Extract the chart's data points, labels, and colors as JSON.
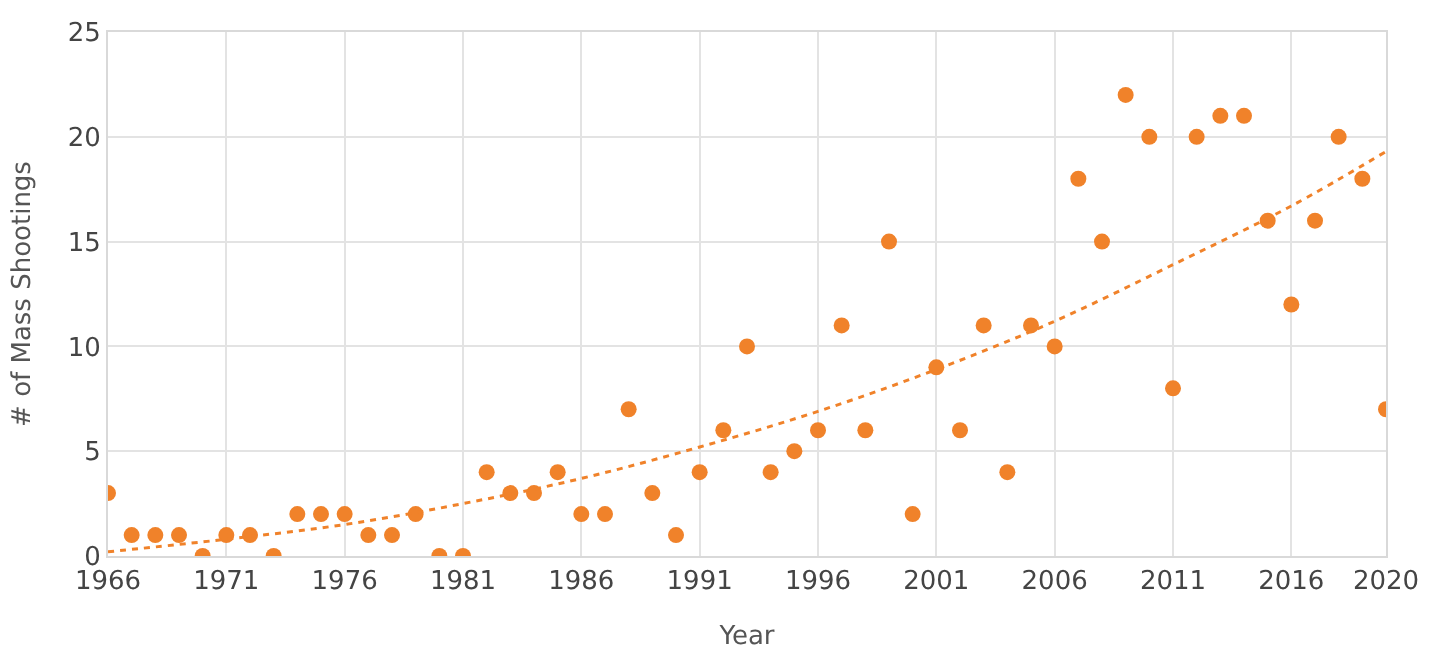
{
  "chart_data": {
    "type": "scatter",
    "xlabel": "Year",
    "ylabel": "# of Mass Shootings",
    "xlim": [
      1966,
      2020
    ],
    "xticks": [
      1966,
      1971,
      1976,
      1981,
      1986,
      1991,
      1996,
      2001,
      2006,
      2011,
      2016,
      2020
    ],
    "ylim": [
      0,
      25
    ],
    "yticks": [
      0,
      5,
      10,
      15,
      20,
      25
    ],
    "grid": true,
    "series": [
      {
        "marker": "circle",
        "color": "#f0822a",
        "x": [
          1966,
          1967,
          1968,
          1969,
          1970,
          1971,
          1972,
          1973,
          1974,
          1975,
          1976,
          1977,
          1978,
          1979,
          1980,
          1981,
          1982,
          1983,
          1984,
          1985,
          1986,
          1987,
          1988,
          1989,
          1990,
          1991,
          1992,
          1993,
          1994,
          1995,
          1996,
          1997,
          1998,
          1999,
          2000,
          2001,
          2002,
          2003,
          2004,
          2005,
          2006,
          2007,
          2008,
          2009,
          2010,
          2011,
          2012,
          2013,
          2014,
          2015,
          2016,
          2017,
          2018,
          2019,
          2020
        ],
        "values": [
          3,
          1,
          1,
          1,
          0,
          1,
          1,
          0,
          2,
          2,
          2,
          1,
          1,
          2,
          0,
          0,
          4,
          3,
          3,
          4,
          2,
          2,
          7,
          3,
          1,
          4,
          6,
          10,
          4,
          5,
          6,
          11,
          6,
          15,
          2,
          9,
          6,
          11,
          4,
          11,
          10,
          18,
          15,
          22,
          20,
          8,
          20,
          21,
          21,
          16,
          12,
          16,
          20,
          18,
          7
        ]
      },
      {
        "type": "line",
        "line_style": "dotted",
        "marker": "none",
        "color": "#f0822a",
        "x": [
          1966,
          1971,
          1976,
          1981,
          1986,
          1991,
          1996,
          2001,
          2006,
          2011,
          2016,
          2020
        ],
        "values": [
          0.2,
          0.8,
          1.5,
          2.5,
          3.7,
          5.2,
          6.9,
          8.9,
          11.2,
          13.9,
          16.7,
          19.3
        ]
      }
    ]
  }
}
